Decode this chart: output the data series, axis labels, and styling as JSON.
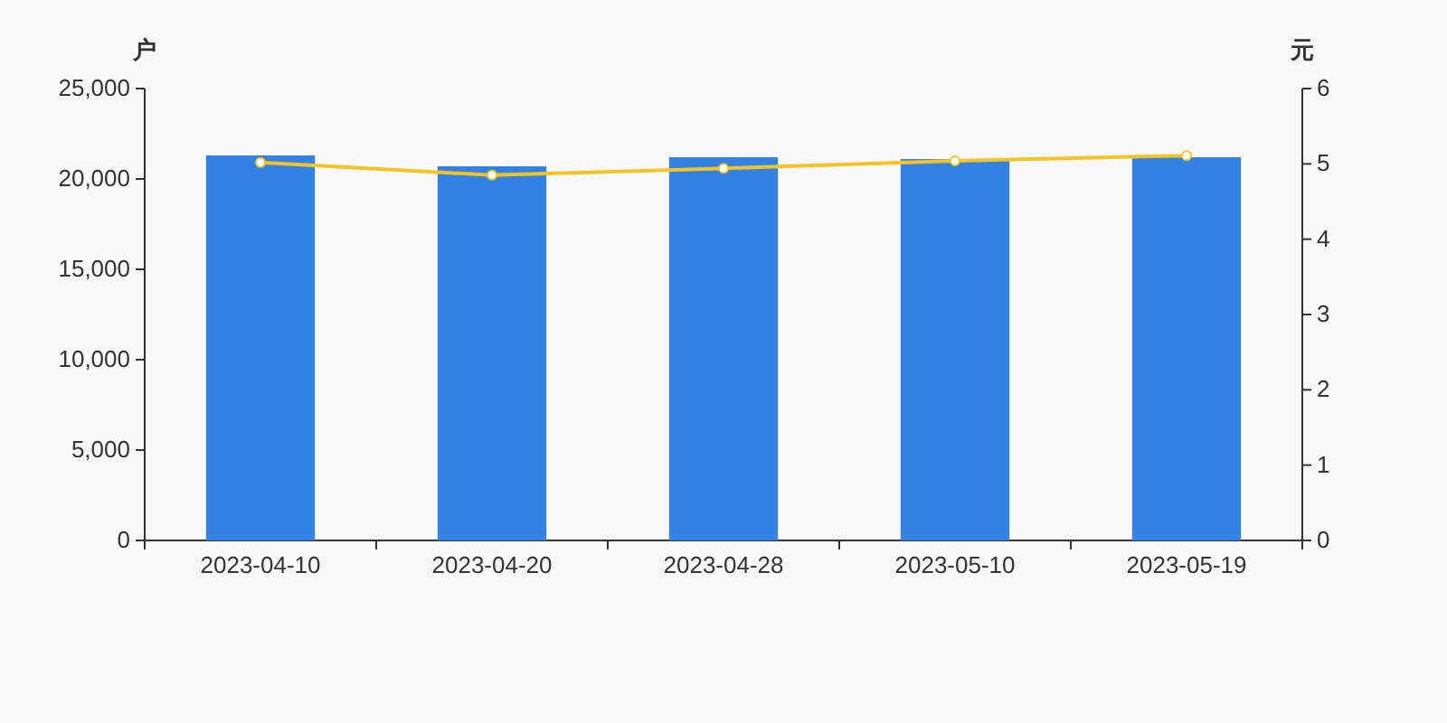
{
  "chart_data": {
    "type": "bar",
    "categories": [
      "2023-04-10",
      "2023-04-20",
      "2023-04-28",
      "2023-05-10",
      "2023-05-19"
    ],
    "ylabel": "户",
    "y2label": "元",
    "series": [
      {
        "color": "#3282e3",
        "values": [
          21300,
          20700,
          21200,
          21100,
          21200
        ]
      },
      {
        "type": "line",
        "axis": "y2",
        "color": "#f5c324",
        "marker": "circle",
        "values": [
          5.02,
          4.85,
          4.94,
          5.04,
          5.11
        ]
      }
    ],
    "ylim": [
      0,
      25000
    ],
    "yticks": [
      {
        "value": 0,
        "label": "0"
      },
      {
        "value": 5000,
        "label": "5,000"
      },
      {
        "value": 10000,
        "label": "10,000"
      },
      {
        "value": 15000,
        "label": "15,000"
      },
      {
        "value": 20000,
        "label": "20,000"
      },
      {
        "value": 25000,
        "label": "25,000"
      }
    ],
    "y2lim": [
      0,
      6
    ],
    "y2ticks": [
      0,
      1,
      2,
      3,
      4,
      5,
      6
    ],
    "grid": false
  }
}
